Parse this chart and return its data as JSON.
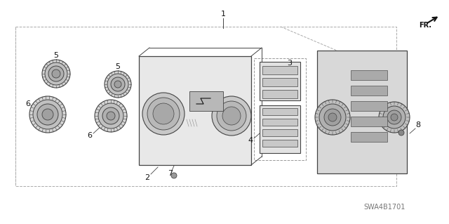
{
  "bg_color": "#ffffff",
  "line_color": "#444444",
  "dark_color": "#111111",
  "gray_fill": "#cccccc",
  "light_gray": "#e0e0e0",
  "mid_gray": "#aaaaaa",
  "watermark": "SWA4B1701",
  "figsize": [
    6.4,
    3.19
  ],
  "dpi": 100,
  "knob_gray": "#888888",
  "part_labels": [
    "1",
    "2",
    "3",
    "4",
    "5",
    "5",
    "6",
    "6",
    "7",
    "8"
  ]
}
